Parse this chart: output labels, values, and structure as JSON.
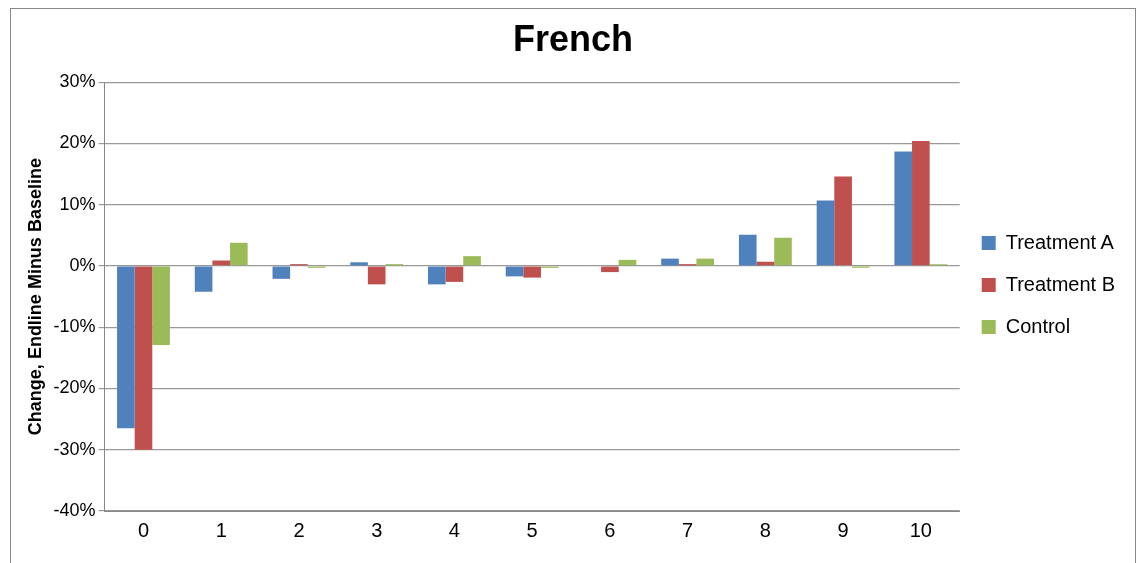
{
  "chart_data": {
    "type": "bar",
    "title": "French",
    "ylabel": "Change, Endline Minus Baseline",
    "categories": [
      "0",
      "1",
      "2",
      "3",
      "4",
      "5",
      "6",
      "7",
      "8",
      "9",
      "10"
    ],
    "series": [
      {
        "name": "Treatment A",
        "color": "#4f81bd",
        "values": [
          -26.5,
          -4.2,
          -2.1,
          0.6,
          -3.0,
          -1.7,
          0,
          1.2,
          5.1,
          10.7,
          18.7
        ]
      },
      {
        "name": "Treatment B",
        "color": "#c0504d",
        "values": [
          -30,
          0.9,
          0.3,
          -3.0,
          -2.6,
          -1.9,
          -1.0,
          0.3,
          0.7,
          14.6,
          20.4
        ]
      },
      {
        "name": "Control",
        "color": "#9bbb59",
        "values": [
          -12.9,
          3.8,
          -0.3,
          0.3,
          1.6,
          -0.3,
          1.0,
          1.2,
          4.6,
          -0.3,
          0.3
        ]
      }
    ],
    "ylim": [
      -40,
      30
    ],
    "yticks": [
      {
        "value": -40,
        "label": "-40%"
      },
      {
        "value": -30,
        "label": "-30%"
      },
      {
        "value": -20,
        "label": "-20%"
      },
      {
        "value": -10,
        "label": "-10%"
      },
      {
        "value": 0,
        "label": "0%"
      },
      {
        "value": 10,
        "label": "10%"
      },
      {
        "value": 20,
        "label": "20%"
      },
      {
        "value": 30,
        "label": "30%"
      }
    ],
    "grid": "y",
    "legend": "right"
  }
}
